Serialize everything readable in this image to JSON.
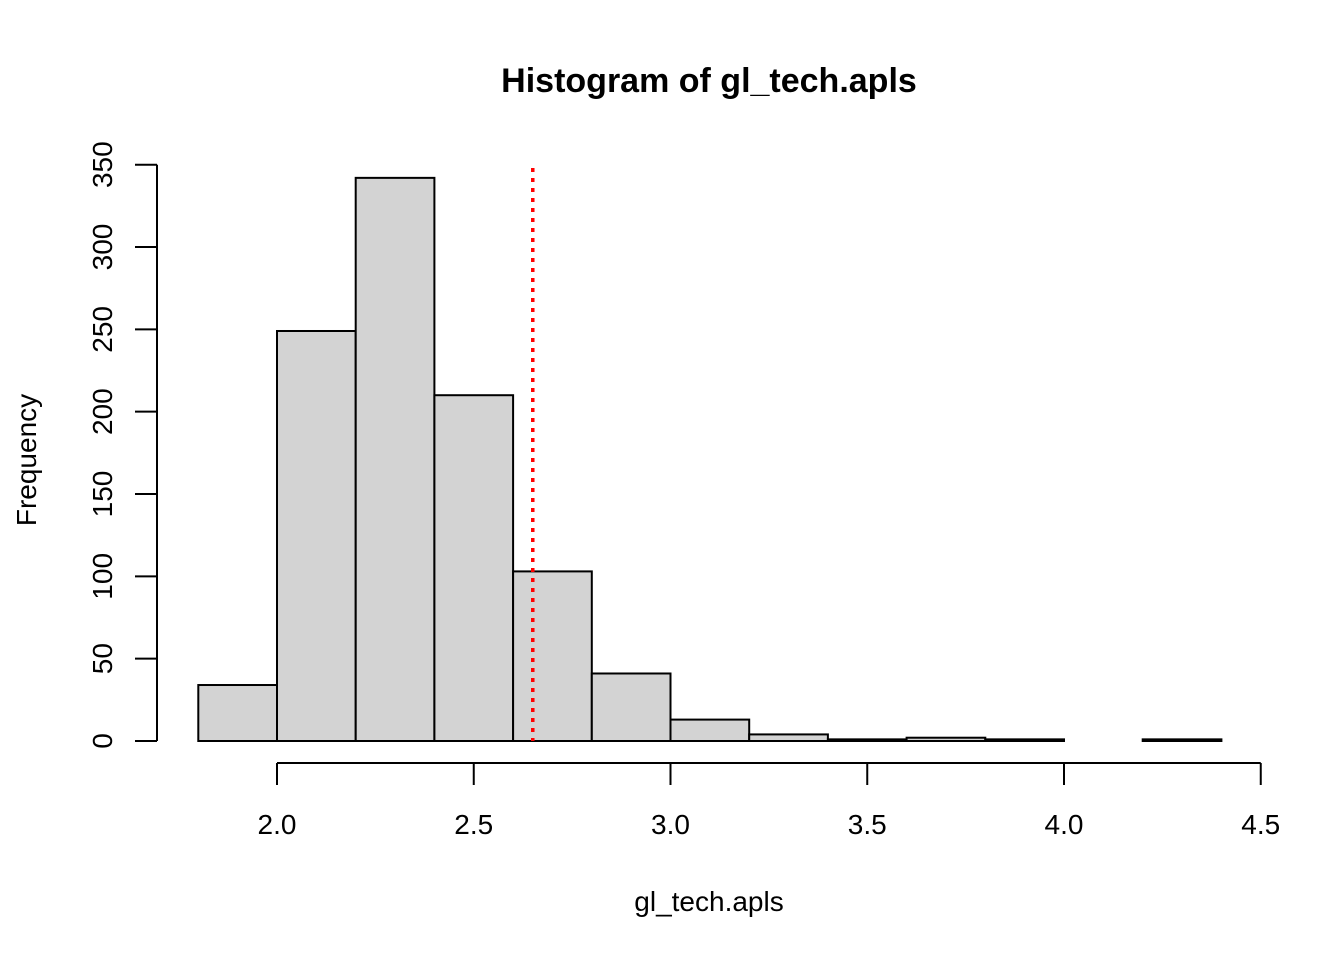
{
  "chart_data": {
    "type": "bar",
    "title": "Histogram of gl_tech.apls",
    "xlabel": "gl_tech.apls",
    "ylabel": "Frequency",
    "xlim": [
      1.8,
      4.5
    ],
    "ylim": [
      0,
      350
    ],
    "x_ticks": [
      2.0,
      2.5,
      3.0,
      3.5,
      4.0,
      4.5
    ],
    "x_tick_labels": [
      "2.0",
      "2.5",
      "3.0",
      "3.5",
      "4.0",
      "4.5"
    ],
    "y_ticks": [
      0,
      50,
      100,
      150,
      200,
      250,
      300,
      350
    ],
    "y_tick_labels": [
      "0",
      "50",
      "100",
      "150",
      "200",
      "250",
      "300",
      "350"
    ],
    "bins": [
      {
        "start": 1.8,
        "end": 2.0,
        "count": 34
      },
      {
        "start": 2.0,
        "end": 2.2,
        "count": 249
      },
      {
        "start": 2.2,
        "end": 2.4,
        "count": 342
      },
      {
        "start": 2.4,
        "end": 2.6,
        "count": 210
      },
      {
        "start": 2.6,
        "end": 2.8,
        "count": 103
      },
      {
        "start": 2.8,
        "end": 3.0,
        "count": 41
      },
      {
        "start": 3.0,
        "end": 3.2,
        "count": 13
      },
      {
        "start": 3.2,
        "end": 3.4,
        "count": 4
      },
      {
        "start": 3.4,
        "end": 3.6,
        "count": 1
      },
      {
        "start": 3.6,
        "end": 3.8,
        "count": 2
      },
      {
        "start": 3.8,
        "end": 4.0,
        "count": 1
      },
      {
        "start": 4.0,
        "end": 4.2,
        "count": 0
      },
      {
        "start": 4.2,
        "end": 4.4,
        "count": 1
      }
    ],
    "reference_line": {
      "x": 2.65,
      "color": "#ff0000",
      "style": "dotted"
    },
    "bar_color": "#d3d3d3",
    "grid": false,
    "legend": "none"
  }
}
